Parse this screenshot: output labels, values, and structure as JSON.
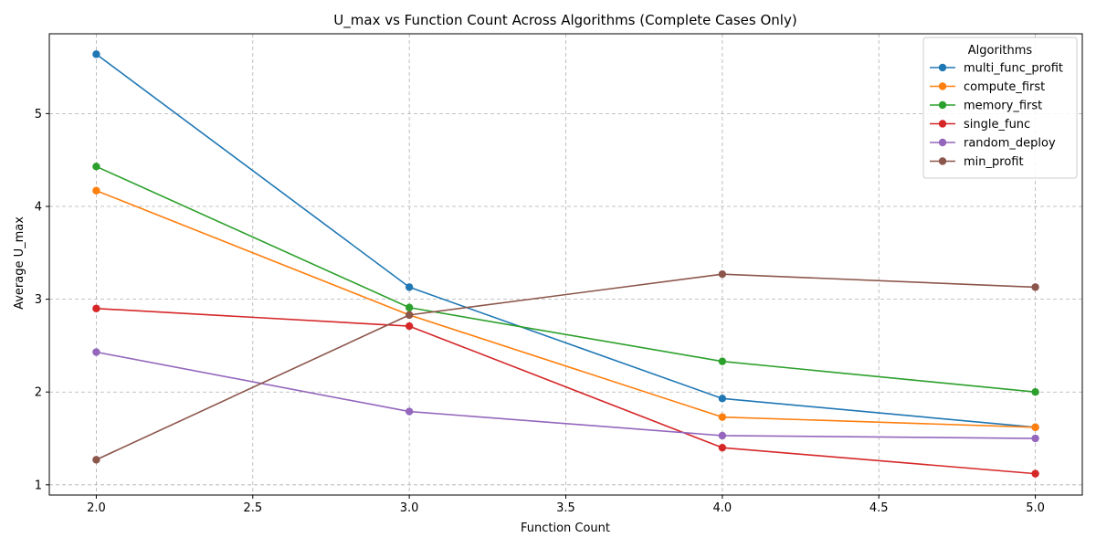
{
  "chart_data": {
    "type": "line",
    "title": "U_max vs Function Count Across Algorithms (Complete Cases Only)",
    "xlabel": "Function Count",
    "ylabel": "Average U_max",
    "x": [
      2.0,
      3.0,
      4.0,
      5.0
    ],
    "xlim": [
      1.85,
      5.15
    ],
    "ylim": [
      0.89,
      5.86
    ],
    "x_ticks": [
      "2.0",
      "2.5",
      "3.0",
      "3.5",
      "4.0",
      "4.5",
      "5.0"
    ],
    "y_ticks": [
      "1",
      "2",
      "3",
      "4",
      "5"
    ],
    "grid": true,
    "legend": {
      "title": "Algorithms",
      "placement": "top-right"
    },
    "series": [
      {
        "name": "multi_func_profit",
        "color": "#1f77b4",
        "values": [
          5.64,
          3.13,
          1.93,
          1.62
        ]
      },
      {
        "name": "compute_first",
        "color": "#ff7f0e",
        "values": [
          4.17,
          2.83,
          1.73,
          1.62
        ]
      },
      {
        "name": "memory_first",
        "color": "#2ca02c",
        "values": [
          4.43,
          2.91,
          2.33,
          2.0
        ]
      },
      {
        "name": "single_func",
        "color": "#d62728",
        "values": [
          2.9,
          2.71,
          1.4,
          1.12
        ]
      },
      {
        "name": "random_deploy",
        "color": "#9467bd",
        "values": [
          2.43,
          1.79,
          1.53,
          1.5
        ]
      },
      {
        "name": "min_profit",
        "color": "#8c564b",
        "values": [
          1.27,
          2.83,
          3.27,
          3.13
        ]
      }
    ]
  }
}
